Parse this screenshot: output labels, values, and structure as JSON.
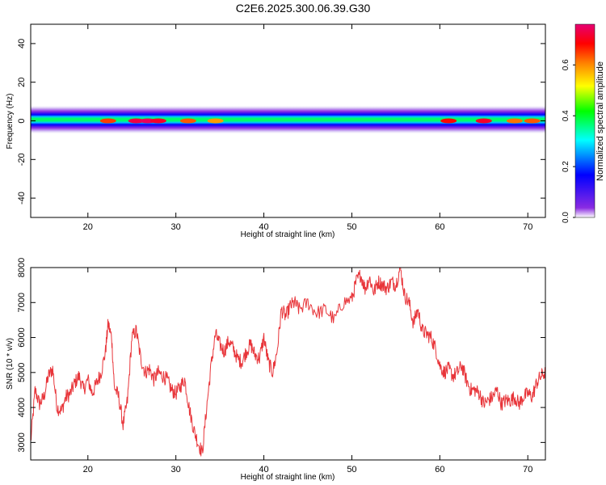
{
  "title": "C2E6.2025.300.06.39.G30",
  "colors": {
    "snr_line": "#e8353a",
    "spectrogram_background": "#ffffff"
  },
  "chart_data": [
    {
      "type": "heatmap",
      "name": "spectrogram",
      "xlabel": "Height of straight line (km)",
      "ylabel": "Frequency (Hz)",
      "xlim": [
        13.5,
        72
      ],
      "ylim": [
        -50,
        50
      ],
      "x_ticks": [
        "20",
        "30",
        "40",
        "50",
        "60",
        "70"
      ],
      "y_ticks": [
        "40",
        "20",
        "0",
        "-20",
        "-40"
      ],
      "band_center_hz": 0,
      "band_halfwidth_hz": 5,
      "colorbar": {
        "label": "Normalized spectral amplitude",
        "range": [
          0.0,
          0.76
        ],
        "ticks": [
          "0.0",
          "0.2",
          "0.4",
          "0.6"
        ],
        "colormap": [
          "#ffffff",
          "#8a2be2",
          "#0000ff",
          "#00ffff",
          "#00ff00",
          "#ffff00",
          "#ff8000",
          "#ff0000",
          "#e60073"
        ]
      },
      "hotspots": [
        {
          "height_km": 22.3,
          "amplitude": 0.62
        },
        {
          "height_km": 25.5,
          "amplitude": 0.72
        },
        {
          "height_km": 26.8,
          "amplitude": 0.74
        },
        {
          "height_km": 28.0,
          "amplitude": 0.7
        },
        {
          "height_km": 31.4,
          "amplitude": 0.6
        },
        {
          "height_km": 34.5,
          "amplitude": 0.55
        },
        {
          "height_km": 61.0,
          "amplitude": 0.66
        },
        {
          "height_km": 65.0,
          "amplitude": 0.7
        },
        {
          "height_km": 68.5,
          "amplitude": 0.58
        },
        {
          "height_km": 70.5,
          "amplitude": 0.6
        }
      ]
    },
    {
      "type": "line",
      "name": "snr",
      "xlabel": "Height of straight line (km)",
      "ylabel": "SNR (10 * v/v)",
      "xlim": [
        13.5,
        72
      ],
      "ylim": [
        2500,
        8000
      ],
      "x_ticks": [
        "20",
        "30",
        "40",
        "50",
        "60",
        "70"
      ],
      "y_ticks": [
        "8000",
        "7000",
        "6000",
        "5000",
        "4000",
        "3000"
      ],
      "series": [
        {
          "name": "SNR",
          "x": [
            13.5,
            14.0,
            14.5,
            15.0,
            15.5,
            16.0,
            16.5,
            17.0,
            17.5,
            18.0,
            18.5,
            19.0,
            19.5,
            20.0,
            20.5,
            21.0,
            21.5,
            22.0,
            22.3,
            22.7,
            23.0,
            23.5,
            24.0,
            24.5,
            25.0,
            25.5,
            26.0,
            26.5,
            27.0,
            27.5,
            28.0,
            28.5,
            29.0,
            29.5,
            30.0,
            30.5,
            31.0,
            31.5,
            32.0,
            32.5,
            33.0,
            33.5,
            34.0,
            34.5,
            35.0,
            35.5,
            36.0,
            36.5,
            37.0,
            37.5,
            38.0,
            38.5,
            39.0,
            39.5,
            40.0,
            40.5,
            41.0,
            41.5,
            42.0,
            42.5,
            43.0,
            43.5,
            44.0,
            45.0,
            46.0,
            47.0,
            48.0,
            49.0,
            50.0,
            50.5,
            51.0,
            51.5,
            52.0,
            52.5,
            53.0,
            53.5,
            54.0,
            54.5,
            55.0,
            55.5,
            56.0,
            56.5,
            57.0,
            57.5,
            58.0,
            58.5,
            59.0,
            59.5,
            60.0,
            60.5,
            61.0,
            61.5,
            62.0,
            62.5,
            63.0,
            63.5,
            64.0,
            64.5,
            65.0,
            65.5,
            66.0,
            66.5,
            67.0,
            67.5,
            68.0,
            68.5,
            69.0,
            69.5,
            70.0,
            70.5,
            71.0,
            71.5,
            72.0
          ],
          "values": [
            3000,
            4500,
            4100,
            4300,
            4900,
            5100,
            4000,
            3900,
            4300,
            4400,
            4700,
            4900,
            4500,
            4800,
            4400,
            4700,
            5000,
            5600,
            6400,
            6000,
            4600,
            4300,
            3500,
            4200,
            6000,
            6200,
            5400,
            5000,
            5100,
            4800,
            5000,
            4900,
            4800,
            4500,
            4400,
            4600,
            4800,
            4000,
            3400,
            3000,
            2700,
            4000,
            5200,
            6100,
            5800,
            5600,
            5900,
            5700,
            5400,
            5300,
            5600,
            5800,
            5500,
            5400,
            6000,
            5300,
            5000,
            5600,
            6800,
            6600,
            6900,
            7000,
            6800,
            7000,
            6700,
            6800,
            6500,
            7000,
            7100,
            7600,
            7800,
            7400,
            7700,
            7300,
            7600,
            7500,
            7400,
            7600,
            7500,
            8000,
            7200,
            7000,
            6400,
            6800,
            6200,
            6100,
            6000,
            5700,
            5200,
            5000,
            5100,
            4900,
            5000,
            5200,
            4800,
            4500,
            4500,
            4400,
            4100,
            4200,
            4300,
            4500,
            4100,
            4200,
            4200,
            4300,
            4100,
            4300,
            4400,
            4300,
            4700,
            4900,
            5000
          ]
        }
      ]
    }
  ]
}
